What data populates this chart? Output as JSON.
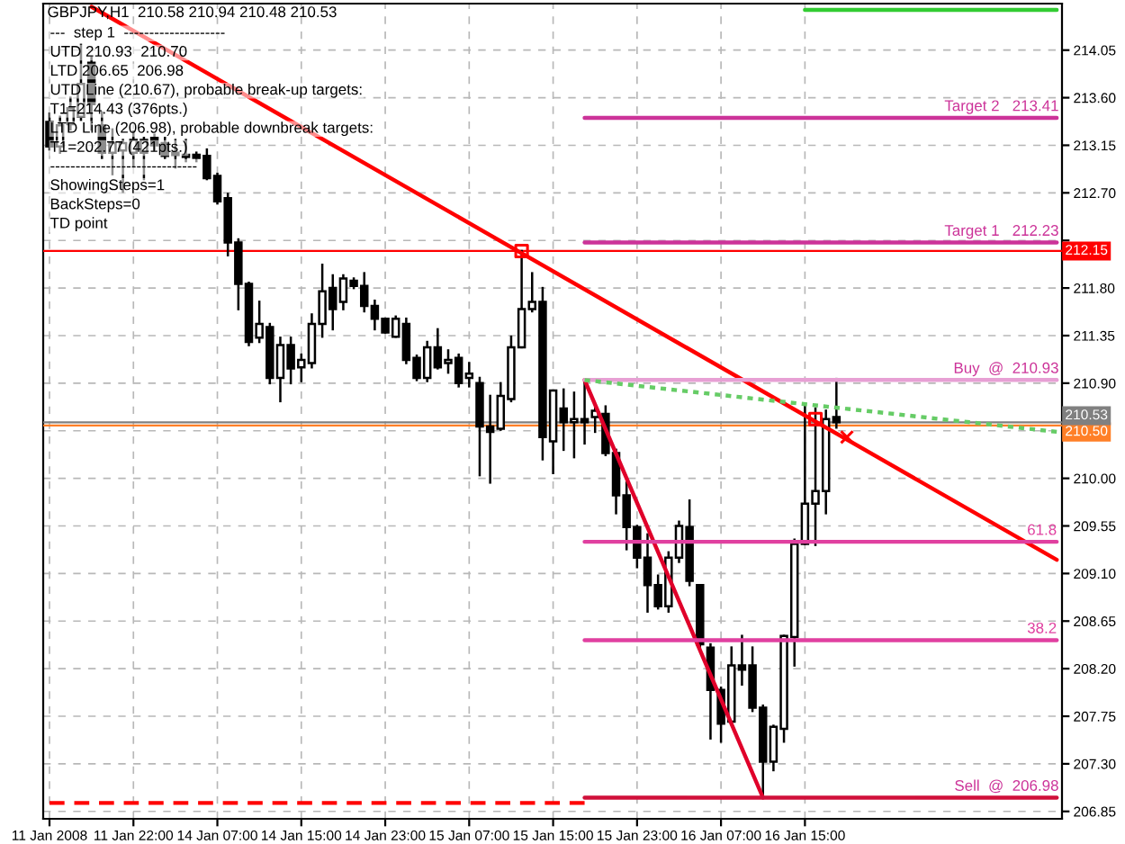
{
  "chart_data": {
    "type": "candlestick",
    "title": "GBPJPY,H1  210.58 210.94 210.48 210.53",
    "categories": [
      "11 Jan 2008",
      null,
      null,
      null,
      null,
      null,
      null,
      null,
      "11 Jan 22:00",
      null,
      null,
      null,
      null,
      null,
      null,
      null,
      "14 Jan 07:00",
      null,
      null,
      null,
      null,
      null,
      null,
      null,
      "14 Jan 15:00",
      null,
      null,
      null,
      null,
      null,
      null,
      null,
      "14 Jan 23:00",
      null,
      null,
      null,
      null,
      null,
      null,
      null,
      "15 Jan 07:00",
      null,
      null,
      null,
      null,
      null,
      null,
      null,
      "15 Jan 15:00",
      null,
      null,
      null,
      null,
      null,
      null,
      null,
      "15 Jan 23:00",
      null,
      null,
      null,
      null,
      null,
      null,
      null,
      "16 Jan 07:00",
      null,
      null,
      null,
      null,
      null,
      null,
      null,
      "16 Jan 15:00",
      null,
      null,
      null,
      null,
      null,
      null,
      null,
      null,
      null,
      null,
      null,
      null,
      null,
      null,
      null,
      null,
      null,
      null,
      null,
      null,
      null,
      null,
      null,
      null
    ],
    "ohlc": [
      [
        213.37,
        213.45,
        213.11,
        213.14
      ],
      [
        213.14,
        213.42,
        213.08,
        213.34
      ],
      [
        213.35,
        213.6,
        213.3,
        213.5
      ],
      [
        213.42,
        214.1,
        213.39,
        213.73
      ],
      [
        213.93,
        213.98,
        213.3,
        213.54
      ],
      [
        213.34,
        213.46,
        213.03,
        213.08
      ],
      [
        213.08,
        213.3,
        212.88,
        213.17
      ],
      [
        213.1,
        213.2,
        212.71,
        213.17
      ],
      [
        213.08,
        213.28,
        212.96,
        213.2
      ],
      [
        213.08,
        213.22,
        212.83,
        213.2
      ],
      [
        213.22,
        213.25,
        213.11,
        213.15
      ],
      [
        213.17,
        213.22,
        213.03,
        213.05
      ],
      [
        213.08,
        213.2,
        212.94,
        213.06
      ],
      [
        213.06,
        213.2,
        213.0,
        213.04
      ],
      [
        213.06,
        213.08,
        213.0,
        213.03
      ],
      [
        213.05,
        213.11,
        212.83,
        212.84
      ],
      [
        212.86,
        212.88,
        212.6,
        212.62
      ],
      [
        212.65,
        212.69,
        212.11,
        212.23
      ],
      [
        212.23,
        212.26,
        211.6,
        211.84
      ],
      [
        211.84,
        211.85,
        211.26,
        211.29
      ],
      [
        211.33,
        211.67,
        211.29,
        211.46
      ],
      [
        211.43,
        211.46,
        210.9,
        210.95
      ],
      [
        210.95,
        211.33,
        210.73,
        211.26
      ],
      [
        211.26,
        211.33,
        210.9,
        211.04
      ],
      [
        211.05,
        211.17,
        210.92,
        211.12
      ],
      [
        211.09,
        211.55,
        211.05,
        211.46
      ],
      [
        211.46,
        212.02,
        211.34,
        211.77
      ],
      [
        211.8,
        211.92,
        211.41,
        211.6
      ],
      [
        211.67,
        211.92,
        211.6,
        211.89
      ],
      [
        211.87,
        211.89,
        211.8,
        211.82
      ],
      [
        211.82,
        211.94,
        211.58,
        211.63
      ],
      [
        211.63,
        211.68,
        211.41,
        211.51
      ],
      [
        211.51,
        211.51,
        211.38,
        211.38
      ],
      [
        211.34,
        211.53,
        211.34,
        211.51
      ],
      [
        211.46,
        211.51,
        211.09,
        211.12
      ],
      [
        211.14,
        211.16,
        210.93,
        210.95
      ],
      [
        210.95,
        211.29,
        210.92,
        211.24
      ],
      [
        211.24,
        211.41,
        211.04,
        211.05
      ],
      [
        211.09,
        211.21,
        211.0,
        211.12
      ],
      [
        211.14,
        211.17,
        210.87,
        210.9
      ],
      [
        210.95,
        211.09,
        210.87,
        210.99
      ],
      [
        210.9,
        210.95,
        210.03,
        210.49
      ],
      [
        210.49,
        210.78,
        209.96,
        210.44
      ],
      [
        210.47,
        210.9,
        210.46,
        210.78
      ],
      [
        210.75,
        211.34,
        210.73,
        211.24
      ],
      [
        211.24,
        212.15,
        211.24,
        211.6
      ],
      [
        211.6,
        211.94,
        211.58,
        211.67
      ],
      [
        211.67,
        211.8,
        210.18,
        210.39
      ],
      [
        210.35,
        210.83,
        210.05,
        210.83
      ],
      [
        210.66,
        210.84,
        210.27,
        210.53
      ],
      [
        210.53,
        210.81,
        210.2,
        210.56
      ],
      [
        210.56,
        210.93,
        210.33,
        210.53
      ],
      [
        210.58,
        210.7,
        210.44,
        210.64
      ],
      [
        210.61,
        210.68,
        210.22,
        210.24
      ],
      [
        210.24,
        210.27,
        209.67,
        209.84
      ],
      [
        209.84,
        209.96,
        209.33,
        209.54
      ],
      [
        209.54,
        209.55,
        209.16,
        209.25
      ],
      [
        209.25,
        209.47,
        208.74,
        208.99
      ],
      [
        208.99,
        209.08,
        208.77,
        208.79
      ],
      [
        208.79,
        209.3,
        208.74,
        209.25
      ],
      [
        209.25,
        209.59,
        209.21,
        209.55
      ],
      [
        209.54,
        209.79,
        208.99,
        209.03
      ],
      [
        208.99,
        208.99,
        208.4,
        208.43
      ],
      [
        208.4,
        208.43,
        207.54,
        208.0
      ],
      [
        208.0,
        208.02,
        207.51,
        207.68
      ],
      [
        207.7,
        208.4,
        207.68,
        208.23
      ],
      [
        208.23,
        208.51,
        208.05,
        208.19
      ],
      [
        208.23,
        208.4,
        207.8,
        207.83
      ],
      [
        207.83,
        207.85,
        206.98,
        207.32
      ],
      [
        207.32,
        207.66,
        207.24,
        207.65
      ],
      [
        207.63,
        208.51,
        207.51,
        208.51
      ],
      [
        208.5,
        209.42,
        208.23,
        209.38
      ],
      [
        209.38,
        210.7,
        209.38,
        209.76
      ],
      [
        209.76,
        210.66,
        209.37,
        209.88
      ],
      [
        209.88,
        210.64,
        209.67,
        210.56
      ],
      [
        210.58,
        210.94,
        210.48,
        210.53
      ],
      null,
      null,
      null,
      null,
      null,
      null,
      null,
      null,
      null,
      null,
      null,
      null,
      null,
      null,
      null,
      null,
      null,
      null,
      null,
      null,
      null
    ],
    "series": [
      {
        "type": "line",
        "color": "#ff0000",
        "values": [
          null,
          null,
          null,
          null,
          214.46,
          null,
          null,
          null,
          null,
          null,
          null,
          null,
          null,
          null,
          null,
          null,
          null,
          null,
          null,
          null,
          null,
          null,
          null,
          null,
          null,
          null,
          null,
          null,
          null,
          null,
          null,
          null,
          null,
          null,
          null,
          null,
          null,
          null,
          null,
          null,
          null,
          null,
          null,
          null,
          null,
          null,
          null,
          null,
          null,
          null,
          null,
          null,
          null,
          null,
          null,
          null,
          null,
          null,
          null,
          null,
          null,
          null,
          null,
          null,
          null,
          null,
          null,
          null,
          null,
          null,
          null,
          null,
          null,
          null,
          null,
          null,
          null,
          null,
          null,
          null,
          null,
          null,
          null,
          null,
          null,
          null,
          null,
          null,
          null,
          null,
          null,
          null,
          null,
          null,
          null,
          null,
          209.23
        ]
      },
      {
        "type": "line",
        "color": "#e0002a",
        "values": [
          null,
          null,
          null,
          null,
          null,
          null,
          null,
          null,
          null,
          null,
          null,
          null,
          null,
          null,
          null,
          null,
          null,
          null,
          null,
          null,
          null,
          null,
          null,
          null,
          null,
          null,
          null,
          null,
          null,
          null,
          null,
          null,
          null,
          null,
          null,
          null,
          null,
          null,
          null,
          null,
          null,
          null,
          null,
          null,
          null,
          null,
          null,
          null,
          null,
          null,
          null,
          210.93,
          null,
          null,
          null,
          null,
          null,
          null,
          null,
          null,
          null,
          null,
          null,
          null,
          null,
          null,
          null,
          null,
          206.98,
          null,
          null,
          null,
          null,
          null,
          null,
          null,
          null,
          null,
          null,
          null,
          null,
          null,
          null,
          null,
          null,
          null,
          null,
          null,
          null,
          null,
          null,
          null,
          null,
          null,
          null,
          null,
          null
        ]
      },
      {
        "type": "line",
        "color": "#66cc66",
        "line_style": "dotted",
        "values": [
          null,
          null,
          null,
          null,
          null,
          null,
          null,
          null,
          null,
          null,
          null,
          null,
          null,
          null,
          null,
          null,
          null,
          null,
          null,
          null,
          null,
          null,
          null,
          null,
          null,
          null,
          null,
          null,
          null,
          null,
          null,
          null,
          null,
          null,
          null,
          null,
          null,
          null,
          null,
          null,
          null,
          null,
          null,
          null,
          null,
          null,
          null,
          null,
          null,
          null,
          null,
          210.93,
          null,
          null,
          null,
          null,
          null,
          null,
          null,
          null,
          null,
          null,
          null,
          null,
          null,
          null,
          null,
          null,
          null,
          null,
          null,
          null,
          null,
          null,
          null,
          null,
          null,
          null,
          null,
          null,
          null,
          null,
          null,
          null,
          null,
          null,
          null,
          null,
          null,
          null,
          null,
          null,
          null,
          null,
          null,
          null,
          210.44
        ]
      },
      {
        "type": "line",
        "color": "#33cc33",
        "values": [
          null,
          null,
          null,
          null,
          null,
          null,
          null,
          null,
          null,
          null,
          null,
          null,
          null,
          null,
          null,
          null,
          null,
          null,
          null,
          null,
          null,
          null,
          null,
          null,
          null,
          null,
          null,
          null,
          null,
          null,
          null,
          null,
          null,
          null,
          null,
          null,
          null,
          null,
          null,
          null,
          null,
          null,
          null,
          null,
          null,
          null,
          null,
          null,
          null,
          null,
          null,
          null,
          null,
          null,
          null,
          null,
          null,
          null,
          null,
          null,
          null,
          null,
          null,
          null,
          null,
          null,
          null,
          null,
          null,
          null,
          null,
          null,
          214.43,
          null,
          null,
          null,
          null,
          null,
          null,
          null,
          null,
          null,
          null,
          null,
          null,
          null,
          null,
          null,
          null,
          null,
          null,
          null,
          null,
          null,
          null,
          null,
          214.43
        ]
      },
      {
        "type": "line",
        "color": "#cc3399",
        "values": [
          null,
          null,
          null,
          null,
          null,
          null,
          null,
          null,
          null,
          null,
          null,
          null,
          null,
          null,
          null,
          null,
          null,
          null,
          null,
          null,
          null,
          null,
          null,
          null,
          null,
          null,
          null,
          null,
          null,
          null,
          null,
          null,
          null,
          null,
          null,
          null,
          null,
          null,
          null,
          null,
          null,
          null,
          null,
          null,
          null,
          null,
          null,
          null,
          null,
          null,
          null,
          213.41,
          null,
          null,
          null,
          null,
          null,
          null,
          null,
          null,
          null,
          null,
          null,
          null,
          null,
          null,
          null,
          null,
          null,
          null,
          null,
          null,
          null,
          null,
          null,
          null,
          null,
          null,
          null,
          null,
          null,
          null,
          null,
          null,
          null,
          null,
          null,
          null,
          null,
          null,
          null,
          null,
          null,
          null,
          null,
          null,
          213.41
        ]
      },
      {
        "type": "line",
        "color": "#cc3399",
        "values": [
          null,
          null,
          null,
          null,
          null,
          null,
          null,
          null,
          null,
          null,
          null,
          null,
          null,
          null,
          null,
          null,
          null,
          null,
          null,
          null,
          null,
          null,
          null,
          null,
          null,
          null,
          null,
          null,
          null,
          null,
          null,
          null,
          null,
          null,
          null,
          null,
          null,
          null,
          null,
          null,
          null,
          null,
          null,
          null,
          null,
          null,
          null,
          null,
          null,
          null,
          null,
          212.23,
          null,
          null,
          null,
          null,
          null,
          null,
          null,
          null,
          null,
          null,
          null,
          null,
          null,
          null,
          null,
          null,
          null,
          null,
          null,
          null,
          null,
          null,
          null,
          null,
          null,
          null,
          null,
          null,
          null,
          null,
          null,
          null,
          null,
          null,
          null,
          null,
          null,
          null,
          null,
          null,
          null,
          null,
          null,
          null,
          212.23
        ]
      },
      {
        "type": "line",
        "color": "#e7a0d4",
        "values": [
          null,
          null,
          null,
          null,
          null,
          null,
          null,
          null,
          null,
          null,
          null,
          null,
          null,
          null,
          null,
          null,
          null,
          null,
          null,
          null,
          null,
          null,
          null,
          null,
          null,
          null,
          null,
          null,
          null,
          null,
          null,
          null,
          null,
          null,
          null,
          null,
          null,
          null,
          null,
          null,
          null,
          null,
          null,
          null,
          null,
          null,
          null,
          null,
          null,
          null,
          null,
          210.93,
          null,
          null,
          null,
          null,
          null,
          null,
          null,
          null,
          null,
          null,
          null,
          null,
          null,
          null,
          null,
          null,
          null,
          null,
          null,
          null,
          null,
          null,
          null,
          null,
          null,
          null,
          null,
          null,
          null,
          null,
          null,
          null,
          null,
          null,
          null,
          null,
          null,
          null,
          null,
          null,
          null,
          null,
          null,
          null,
          210.93
        ]
      },
      {
        "type": "line",
        "color": "#e040a0",
        "name": "61.8",
        "values": [
          null,
          null,
          null,
          null,
          null,
          null,
          null,
          null,
          null,
          null,
          null,
          null,
          null,
          null,
          null,
          null,
          null,
          null,
          null,
          null,
          null,
          null,
          null,
          null,
          null,
          null,
          null,
          null,
          null,
          null,
          null,
          null,
          null,
          null,
          null,
          null,
          null,
          null,
          null,
          null,
          null,
          null,
          null,
          null,
          null,
          null,
          null,
          null,
          null,
          null,
          null,
          209.4,
          null,
          null,
          null,
          null,
          null,
          null,
          null,
          null,
          null,
          null,
          null,
          null,
          null,
          null,
          null,
          null,
          null,
          null,
          null,
          null,
          null,
          null,
          null,
          null,
          null,
          null,
          null,
          null,
          null,
          null,
          null,
          null,
          null,
          null,
          null,
          null,
          null,
          null,
          null,
          null,
          null,
          null,
          null,
          null,
          209.4
        ]
      },
      {
        "type": "line",
        "color": "#e040a0",
        "name": "38.2",
        "values": [
          null,
          null,
          null,
          null,
          null,
          null,
          null,
          null,
          null,
          null,
          null,
          null,
          null,
          null,
          null,
          null,
          null,
          null,
          null,
          null,
          null,
          null,
          null,
          null,
          null,
          null,
          null,
          null,
          null,
          null,
          null,
          null,
          null,
          null,
          null,
          null,
          null,
          null,
          null,
          null,
          null,
          null,
          null,
          null,
          null,
          null,
          null,
          null,
          null,
          null,
          null,
          208.47,
          null,
          null,
          null,
          null,
          null,
          null,
          null,
          null,
          null,
          null,
          null,
          null,
          null,
          null,
          null,
          null,
          null,
          null,
          null,
          null,
          null,
          null,
          null,
          null,
          null,
          null,
          null,
          null,
          null,
          null,
          null,
          null,
          null,
          null,
          null,
          null,
          null,
          null,
          null,
          null,
          null,
          null,
          null,
          null,
          208.47
        ]
      },
      {
        "type": "line",
        "color": "#d0103a",
        "values": [
          null,
          null,
          null,
          null,
          null,
          null,
          null,
          null,
          null,
          null,
          null,
          null,
          null,
          null,
          null,
          null,
          null,
          null,
          null,
          null,
          null,
          null,
          null,
          null,
          null,
          null,
          null,
          null,
          null,
          null,
          null,
          null,
          null,
          null,
          null,
          null,
          null,
          null,
          null,
          null,
          null,
          null,
          null,
          null,
          null,
          null,
          null,
          null,
          null,
          null,
          null,
          206.98,
          null,
          null,
          null,
          null,
          null,
          null,
          null,
          null,
          null,
          null,
          null,
          null,
          null,
          null,
          null,
          null,
          null,
          null,
          null,
          null,
          null,
          null,
          null,
          null,
          null,
          null,
          null,
          null,
          null,
          null,
          null,
          null,
          null,
          null,
          null,
          null,
          null,
          null,
          null,
          null,
          null,
          null,
          null,
          null,
          206.98
        ]
      },
      {
        "type": "line",
        "color": "#ff0000",
        "line_style": "dashed",
        "values": [
          206.93,
          null,
          null,
          null,
          null,
          null,
          null,
          null,
          null,
          null,
          null,
          null,
          null,
          null,
          null,
          null,
          null,
          null,
          null,
          null,
          null,
          null,
          null,
          null,
          null,
          null,
          null,
          null,
          null,
          null,
          null,
          null,
          null,
          null,
          null,
          null,
          null,
          null,
          null,
          null,
          null,
          null,
          null,
          null,
          null,
          null,
          null,
          null,
          null,
          null,
          null,
          206.93,
          null,
          null,
          null,
          null,
          null,
          null,
          null,
          null,
          null,
          null,
          null,
          null,
          null,
          null,
          null,
          null,
          null,
          null,
          null,
          null,
          null,
          null,
          null,
          null,
          null,
          null,
          null,
          null,
          null,
          null,
          null,
          null,
          null,
          null,
          null,
          null,
          null,
          null,
          null,
          null,
          null,
          null,
          null,
          null,
          null
        ]
      },
      {
        "type": "scatter",
        "color": "#ff0000",
        "marker": "square",
        "values": [
          null,
          null,
          null,
          null,
          null,
          null,
          null,
          null,
          null,
          null,
          null,
          null,
          null,
          null,
          null,
          null,
          null,
          null,
          null,
          null,
          null,
          null,
          null,
          null,
          null,
          null,
          null,
          null,
          null,
          null,
          null,
          null,
          null,
          null,
          null,
          null,
          null,
          null,
          null,
          null,
          null,
          null,
          null,
          null,
          null,
          212.15,
          null,
          null,
          null,
          null,
          null,
          null,
          null,
          null,
          null,
          null,
          null,
          null,
          null,
          null,
          null,
          null,
          null,
          null,
          null,
          null,
          null,
          null,
          null,
          null,
          null,
          null,
          null,
          210.56,
          null,
          null,
          null,
          null,
          null,
          null,
          null,
          null,
          null,
          null,
          null,
          null,
          null,
          null,
          null,
          null,
          null,
          null,
          null,
          null,
          null,
          null,
          null
        ]
      },
      {
        "type": "scatter",
        "color": "#ff0000",
        "marker": "cross",
        "values": [
          null,
          null,
          null,
          null,
          null,
          null,
          null,
          null,
          null,
          null,
          null,
          null,
          null,
          null,
          null,
          null,
          null,
          null,
          null,
          null,
          null,
          null,
          null,
          null,
          null,
          null,
          null,
          null,
          null,
          null,
          null,
          null,
          null,
          null,
          null,
          null,
          null,
          null,
          null,
          null,
          null,
          null,
          null,
          null,
          null,
          null,
          null,
          null,
          null,
          null,
          null,
          null,
          null,
          null,
          null,
          null,
          null,
          null,
          null,
          null,
          null,
          null,
          null,
          null,
          null,
          null,
          null,
          null,
          null,
          null,
          null,
          null,
          null,
          null,
          null,
          null,
          210.39,
          null,
          null,
          null,
          null,
          null,
          null,
          null,
          null,
          null,
          null,
          null,
          null,
          null,
          null,
          null,
          null,
          null,
          null,
          null,
          null
        ]
      }
    ],
    "ref_lines": [
      {
        "axis": "y",
        "value": 212.15,
        "label": "212.15",
        "color": "#ff0000"
      },
      {
        "axis": "y",
        "value": 210.5,
        "label": "210.50",
        "color": "#ff7f27"
      },
      {
        "axis": "y",
        "value": 210.53,
        "label": "210.53",
        "color": "#808080"
      }
    ],
    "annotations": [
      "---  step 1  --------------------",
      "UTD 210.93  210.70",
      "LTD 206.65  206.98",
      "UTD Line (210.67), probable break-up targets:",
      "T1=214.43 (376pts.)",
      "LTD Line (206.98), probable downbreak targets:",
      "T1=202.77 (421pts.)",
      "-----------------------------",
      "ShowingSteps=1",
      "BackSteps=0",
      "TD point",
      {
        "text": "Target 2   213.41",
        "y": 213.41
      },
      {
        "text": "Target 1   212.23",
        "y": 212.23
      },
      {
        "text": "Buy  @  210.93",
        "y": 210.93
      },
      {
        "text": "Sell  @  206.98",
        "y": 206.98
      }
    ],
    "ylim": [
      206.78,
      214.49
    ],
    "yticks": [
      206.85,
      {
        "value": 207.3,
        "label": "207.30"
      },
      207.75,
      {
        "value": 208.2,
        "label": "208.20"
      },
      208.65,
      {
        "value": 209.1,
        "label": "209.10"
      },
      209.55,
      {
        "value": 210.0,
        "label": "210.00"
      },
      {
        "value": 210.45,
        "label": null
      },
      {
        "value": 210.9,
        "label": "210.90"
      },
      211.35,
      {
        "value": 211.8,
        "label": "211.80"
      },
      {
        "value": 212.25,
        "label": null
      },
      {
        "value": 212.7,
        "label": "212.70"
      },
      213.15,
      {
        "value": 213.6,
        "label": "213.60"
      },
      214.05
    ],
    "grid": true
  }
}
